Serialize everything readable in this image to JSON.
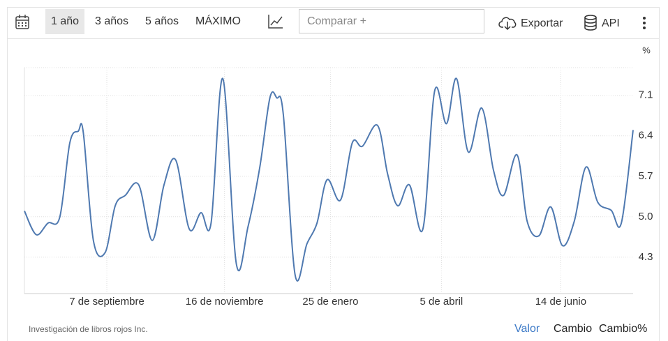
{
  "toolbar": {
    "ranges": [
      "1 año",
      "3 años",
      "5 años",
      "MÁXIMO"
    ],
    "compare_placeholder": "Comparar +",
    "export": "Exportar",
    "api": "API"
  },
  "chart_data": {
    "type": "line",
    "y_unit": "%",
    "color": "#4f79b0",
    "x": [
      0,
      7,
      14,
      21,
      27,
      32,
      35,
      41,
      48,
      54,
      60,
      68,
      76,
      83,
      90,
      98,
      105,
      111,
      118,
      126,
      133,
      140,
      146,
      150,
      154,
      161,
      168,
      174,
      180,
      188,
      195,
      201,
      210,
      216,
      222,
      229,
      237,
      244,
      251,
      257,
      264,
      272,
      279,
      285,
      293,
      299,
      306,
      313,
      320,
      327,
      334,
      341,
      349,
      355,
      362
    ],
    "values": [
      5.1,
      4.69,
      4.89,
      4.99,
      6.28,
      6.48,
      6.46,
      4.59,
      4.38,
      5.19,
      5.37,
      5.55,
      4.59,
      5.55,
      5.98,
      4.79,
      5.07,
      4.89,
      7.39,
      4.19,
      4.83,
      5.86,
      7.06,
      7.06,
      6.76,
      3.99,
      4.53,
      4.89,
      5.64,
      5.29,
      6.28,
      6.22,
      6.58,
      5.74,
      5.19,
      5.55,
      4.79,
      7.18,
      6.61,
      7.39,
      6.12,
      6.88,
      5.8,
      5.37,
      6.07,
      4.92,
      4.67,
      5.17,
      4.5,
      4.92,
      5.86,
      5.25,
      5.11,
      4.89,
      6.5
    ],
    "xlim": [
      0,
      362
    ],
    "xticks": [
      {
        "value": 49,
        "label": "7 de septiembre"
      },
      {
        "value": 119,
        "label": "16 de noviembre"
      },
      {
        "value": 182,
        "label": "25 de enero"
      },
      {
        "value": 248,
        "label": "5 de abril"
      },
      {
        "value": 319,
        "label": "14 de junio"
      }
    ],
    "ylim": [
      3.67,
      7.58
    ],
    "yticks": [
      4.3,
      {
        "value": 5,
        "label": "5.0"
      },
      5.7,
      6.4,
      7.1
    ],
    "grid": true
  },
  "footer": {
    "source": "Investigación de libros rojos Inc.",
    "views": [
      "Valor",
      "Cambio",
      "Cambio%"
    ]
  }
}
